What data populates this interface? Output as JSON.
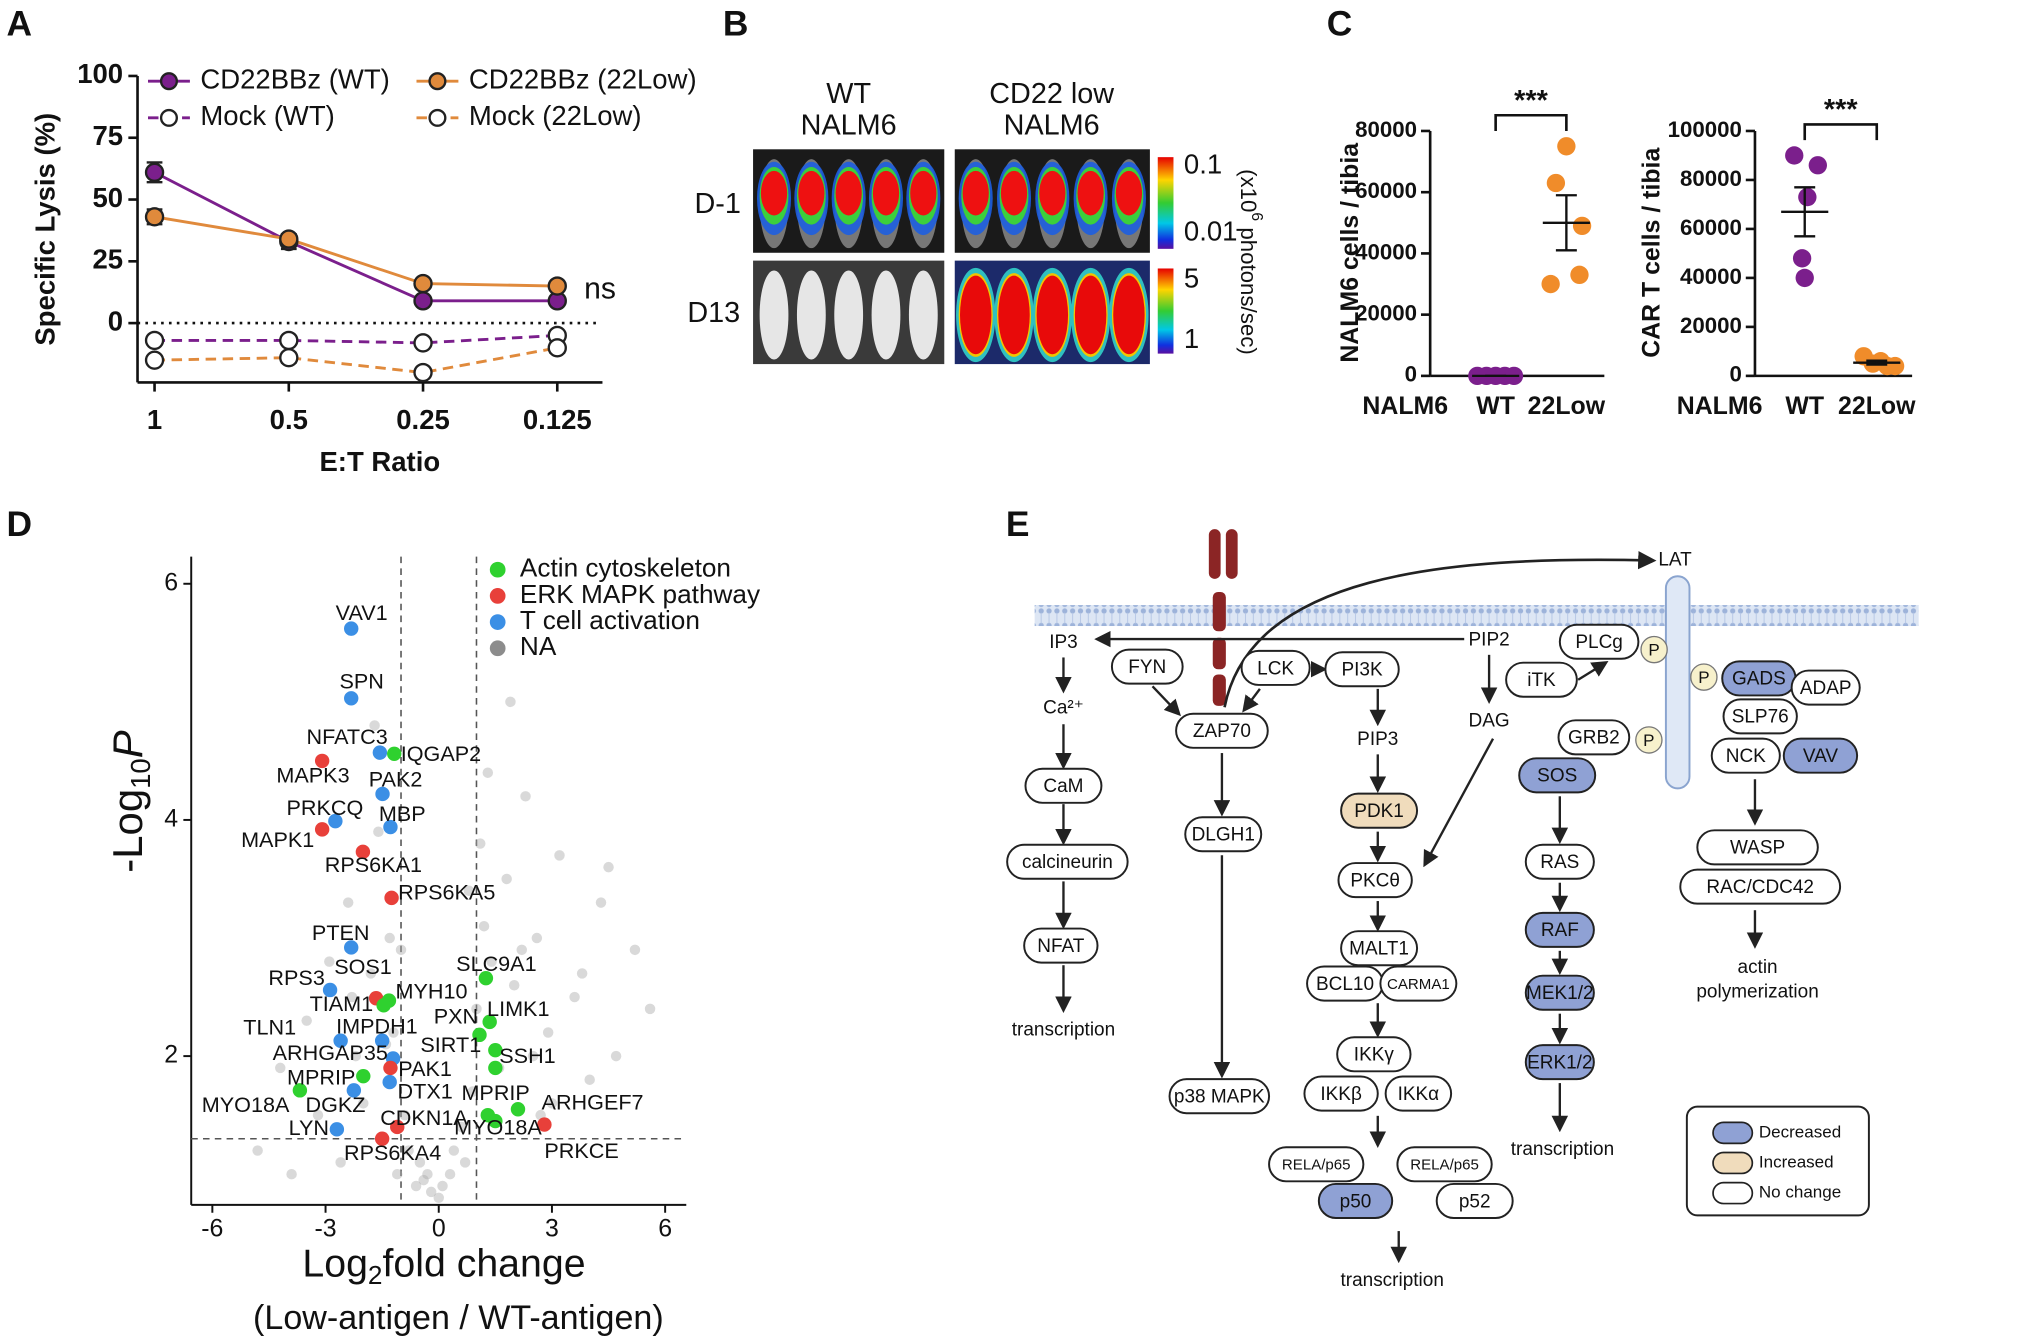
{
  "panels": [
    "A",
    "B",
    "C",
    "D",
    "E"
  ],
  "chart_data": [
    {
      "type": "line",
      "ylabel": "Specific Lysis (%)",
      "xlabel": "E:T Ratio",
      "categories": [
        "1",
        "0.5",
        "0.25",
        "0.125"
      ],
      "ylim": [
        -24,
        100
      ],
      "yticks": [
        0,
        25,
        50,
        75,
        100
      ],
      "reference_line": 0,
      "annotation": "ns",
      "series": [
        {
          "name": "CD22BBz (WT)",
          "color": "#7b1f8c",
          "style": "solid",
          "marker": "filled",
          "values": [
            61,
            33,
            9,
            9
          ],
          "errors": [
            4,
            3,
            1,
            1
          ]
        },
        {
          "name": "CD22BBz (22Low)",
          "color": "#e08a3c",
          "style": "solid",
          "marker": "filled",
          "values": [
            43,
            34,
            16,
            15
          ],
          "errors": [
            3,
            2,
            1,
            1
          ]
        },
        {
          "name": "Mock (WT)",
          "color": "#7b1f8c",
          "style": "dashed",
          "marker": "open",
          "values": [
            -7,
            -7,
            -8,
            -5
          ],
          "errors": [
            1,
            1,
            1,
            1
          ]
        },
        {
          "name": "Mock (22Low)",
          "color": "#e08a3c",
          "style": "dashed",
          "marker": "open",
          "values": [
            -15,
            -14,
            -20,
            -10
          ],
          "errors": [
            1,
            2,
            1,
            2
          ]
        }
      ]
    },
    {
      "type": "dot",
      "ylabel": "NALM6 cells / tibia",
      "xlabel": "NALM6",
      "categories": [
        "WT",
        "22Low"
      ],
      "ylim": [
        0,
        80000
      ],
      "yticks": [
        0,
        20000,
        40000,
        60000,
        80000
      ],
      "annotation": "***",
      "groups": [
        {
          "color": "#7b1f8c",
          "values": [
            0,
            0,
            0,
            0,
            0
          ],
          "mean": 0,
          "sem": 0
        },
        {
          "color": "#f08c2a",
          "values": [
            75000,
            63000,
            49000,
            30000,
            33000
          ],
          "mean": 50000,
          "sem": 9000
        }
      ]
    },
    {
      "type": "dot",
      "ylabel": "CAR T cells / tibia",
      "xlabel": "NALM6",
      "categories": [
        "WT",
        "22Low"
      ],
      "ylim": [
        0,
        100000
      ],
      "yticks": [
        0,
        20000,
        40000,
        60000,
        80000,
        100000
      ],
      "annotation": "***",
      "groups": [
        {
          "color": "#7b1f8c",
          "values": [
            90000,
            86000,
            73000,
            48000,
            40000
          ],
          "mean": 67000,
          "sem": 10000
        },
        {
          "color": "#f08c2a",
          "values": [
            8000,
            5000,
            6000,
            4000,
            4000
          ],
          "mean": 5400,
          "sem": 800
        }
      ]
    },
    {
      "type": "scatter",
      "xlabel_parts": [
        "Log",
        "2",
        "fold change"
      ],
      "ylabel_parts": [
        "-Log",
        "10",
        "P"
      ],
      "subtitle": "(Low-antigen / WT-antigen)",
      "xlim": [
        -6.56,
        6.56
      ],
      "ylim": [
        0.74,
        6.23
      ],
      "xticks": [
        -6,
        -3,
        0,
        3,
        6
      ],
      "yticks": [
        2,
        4,
        6
      ],
      "vlines": [
        -1,
        1
      ],
      "hline": 1.3,
      "legend": "upper right",
      "series": [
        {
          "name": "Actin cytoskeleton",
          "color": "#2fd12f",
          "labels": [
            "IQGAP2",
            "MYH10",
            "TIAM1",
            "SLC9A1",
            "LIMK1",
            "PXN",
            "SIRT1",
            "SSH1",
            "MPRIP",
            "MYO18A",
            "MPRIP",
            "ARHGEF7",
            "MYO18A"
          ],
          "x": [
            -1.18,
            -1.32,
            -1.46,
            1.25,
            1.35,
            1.08,
            1.5,
            1.5,
            -2.0,
            -3.68,
            1.3,
            2.1,
            1.5
          ],
          "y": [
            4.56,
            2.47,
            2.43,
            2.66,
            2.29,
            2.18,
            2.05,
            1.9,
            1.83,
            1.71,
            1.5,
            1.55,
            1.45
          ]
        },
        {
          "name": "ERK MAPK pathway",
          "color": "#e8403a",
          "labels": [
            "MAPK3",
            "MAPK1",
            "RPS6KA1",
            "RPS6KA5",
            "SOS1",
            "PAK1",
            "CDKN1A",
            "RPS6KA4",
            "PRKCE"
          ],
          "x": [
            -3.09,
            -3.09,
            -2.01,
            -1.25,
            -1.66,
            -1.28,
            -1.1,
            -1.5,
            2.8
          ],
          "y": [
            4.5,
            3.92,
            3.73,
            3.34,
            2.49,
            1.9,
            1.4,
            1.3,
            1.42
          ]
        },
        {
          "name": "T cell activation",
          "color": "#3b8fe5",
          "labels": [
            "VAV1",
            "SPN",
            "NFATC3",
            "PAK2",
            "PRKCQ",
            "MBP",
            "PTEN",
            "RPS3",
            "IMPDH1",
            "TLN1",
            "ARHGAP35",
            "DTX1",
            "DGKZ",
            "LYN"
          ],
          "x": [
            -2.32,
            -2.32,
            -1.56,
            -1.49,
            -2.74,
            -1.28,
            -2.32,
            -2.88,
            -1.5,
            -2.6,
            -1.21,
            -1.3,
            -2.25,
            -2.7
          ],
          "y": [
            5.62,
            5.03,
            4.57,
            4.22,
            3.99,
            3.94,
            2.92,
            2.56,
            2.13,
            2.13,
            1.98,
            1.78,
            1.71,
            1.38
          ]
        },
        {
          "name": "NA",
          "color": "#8c8c8c",
          "x": [
            -4.8,
            -4.2,
            -3.9,
            -3.5,
            -3.2,
            -2.9,
            -2.6,
            -2.4,
            -2.2,
            -2.0,
            -1.8,
            -1.6,
            -1.5,
            -1.3,
            -1.2,
            -1.1,
            -0.9,
            -0.8,
            -0.6,
            -0.5,
            -0.3,
            -0.2,
            0,
            0.1,
            0.3,
            0.4,
            0.6,
            0.7,
            0.9,
            1.0,
            1.2,
            1.4,
            1.6,
            1.8,
            2.0,
            2.3,
            2.6,
            2.9,
            3.2,
            3.6,
            4.0,
            4.3,
            4.7,
            5.2,
            5.6,
            -1.7,
            -1.4,
            -1.0,
            1.1,
            1.3,
            2.5,
            3.0,
            2.2,
            1.9,
            -2.3,
            0.8,
            -0.4,
            4.5,
            3.8,
            2.7
          ],
          "y": [
            1.2,
            1.9,
            1.0,
            2.3,
            1.5,
            2.8,
            1.1,
            3.3,
            2.0,
            1.6,
            2.7,
            3.9,
            1.3,
            3.0,
            2.2,
            1.0,
            1.5,
            1.2,
            0.9,
            1.1,
            1.0,
            0.85,
            0.8,
            0.9,
            1.0,
            1.2,
            1.4,
            1.1,
            1.7,
            2.4,
            3.1,
            2.8,
            1.9,
            3.5,
            2.6,
            4.2,
            3.0,
            2.2,
            3.7,
            2.5,
            1.8,
            3.3,
            2.0,
            2.9,
            2.4,
            4.8,
            2.1,
            2.9,
            3.8,
            4.4,
            2.0,
            1.6,
            2.9,
            5.0,
            2.5,
            3.4,
            0.95,
            3.6,
            2.7,
            1.5
          ]
        }
      ]
    }
  ],
  "panel_b": {
    "columns": [
      [
        "WT",
        "NALM6"
      ],
      [
        "CD22 low",
        "NALM6"
      ]
    ],
    "rows": [
      "D-1",
      "D13"
    ],
    "colorbars": [
      [
        "0.1",
        "0.01"
      ],
      [
        "5",
        "1"
      ]
    ],
    "unit_parts": [
      "(x10",
      "6",
      " photons/sec)"
    ]
  },
  "pathway": {
    "nodes": [
      {
        "label": "IP3"
      },
      {
        "label": "Ca²⁺"
      },
      {
        "label": "CaM",
        "color": "#ffffff"
      },
      {
        "label": "calcineurin",
        "color": "#ffffff"
      },
      {
        "label": "NFAT",
        "color": "#ffffff"
      },
      {
        "label": "transcription"
      },
      {
        "label": "FYN",
        "color": "#ffffff"
      },
      {
        "label": "ZAP70",
        "color": "#ffffff"
      },
      {
        "label": "LCK",
        "color": "#ffffff"
      },
      {
        "label": "PI3K",
        "color": "#ffffff"
      },
      {
        "label": "PIP3"
      },
      {
        "label": "PDK1",
        "color": "#f0dcbc"
      },
      {
        "label": "PKCθ",
        "color": "#ffffff"
      },
      {
        "label": "MALT1",
        "color": "#ffffff"
      },
      {
        "label": "BCL10",
        "color": "#ffffff"
      },
      {
        "label": "CARMA1",
        "color": "#ffffff"
      },
      {
        "label": "IKKγ",
        "color": "#ffffff"
      },
      {
        "label": "IKKβ",
        "color": "#ffffff"
      },
      {
        "label": "IKKα",
        "color": "#ffffff"
      },
      {
        "label": "RELA/p65",
        "color": "#ffffff"
      },
      {
        "label": "p50",
        "color": "#8fa1d4"
      },
      {
        "label": "RELA/p65",
        "color": "#ffffff"
      },
      {
        "label": "p52",
        "color": "#ffffff"
      },
      {
        "label": "transcription"
      },
      {
        "label": "DLGH1",
        "color": "#ffffff"
      },
      {
        "label": "p38 MAPK",
        "color": "#ffffff"
      },
      {
        "label": "PIP2"
      },
      {
        "label": "DAG"
      },
      {
        "label": "PLCg",
        "color": "#ffffff"
      },
      {
        "label": "iTK",
        "color": "#ffffff"
      },
      {
        "label": "GRB2",
        "color": "#ffffff"
      },
      {
        "label": "SOS",
        "color": "#8fa1d4"
      },
      {
        "label": "RAS",
        "color": "#ffffff"
      },
      {
        "label": "RAF",
        "color": "#8fa1d4"
      },
      {
        "label": "MEK1/2",
        "color": "#8fa1d4"
      },
      {
        "label": "ERK1/2",
        "color": "#8fa1d4"
      },
      {
        "label": "transcription"
      },
      {
        "label": "GADS",
        "color": "#8fa1d4"
      },
      {
        "label": "ADAP",
        "color": "#ffffff"
      },
      {
        "label": "SLP76",
        "color": "#ffffff"
      },
      {
        "label": "NCK",
        "color": "#ffffff"
      },
      {
        "label": "VAV",
        "color": "#8fa1d4"
      },
      {
        "label": "WASP",
        "color": "#ffffff"
      },
      {
        "label": "RAC/CDC42",
        "color": "#ffffff"
      },
      {
        "label": "actin"
      },
      {
        "label": "polymerization"
      },
      {
        "label": "LAT"
      },
      {
        "label": "P",
        "color": "#f7f1cc"
      },
      {
        "label": "P",
        "color": "#f7f1cc"
      },
      {
        "label": "P",
        "color": "#f7f1cc"
      }
    ],
    "legend": [
      {
        "label": "Decreased",
        "color": "#8fa1d4"
      },
      {
        "label": "Increased",
        "color": "#f0dcbc"
      },
      {
        "label": "No change",
        "color": "#ffffff"
      }
    ]
  }
}
